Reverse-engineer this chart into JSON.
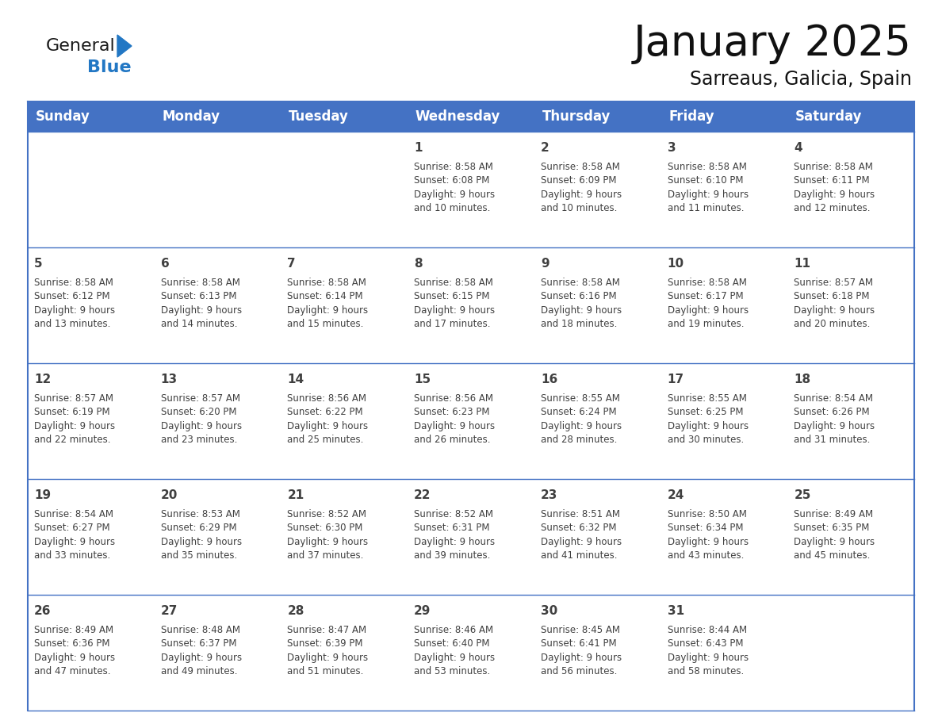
{
  "title": "January 2025",
  "subtitle": "Sarreaus, Galicia, Spain",
  "header_bg": "#4472C4",
  "header_text_color": "#FFFFFF",
  "border_color": "#4472C4",
  "text_color": "#404040",
  "days_of_week": [
    "Sunday",
    "Monday",
    "Tuesday",
    "Wednesday",
    "Thursday",
    "Friday",
    "Saturday"
  ],
  "calendar_data": [
    [
      {
        "day": "",
        "info": ""
      },
      {
        "day": "",
        "info": ""
      },
      {
        "day": "",
        "info": ""
      },
      {
        "day": "1",
        "info": "Sunrise: 8:58 AM\nSunset: 6:08 PM\nDaylight: 9 hours\nand 10 minutes."
      },
      {
        "day": "2",
        "info": "Sunrise: 8:58 AM\nSunset: 6:09 PM\nDaylight: 9 hours\nand 10 minutes."
      },
      {
        "day": "3",
        "info": "Sunrise: 8:58 AM\nSunset: 6:10 PM\nDaylight: 9 hours\nand 11 minutes."
      },
      {
        "day": "4",
        "info": "Sunrise: 8:58 AM\nSunset: 6:11 PM\nDaylight: 9 hours\nand 12 minutes."
      }
    ],
    [
      {
        "day": "5",
        "info": "Sunrise: 8:58 AM\nSunset: 6:12 PM\nDaylight: 9 hours\nand 13 minutes."
      },
      {
        "day": "6",
        "info": "Sunrise: 8:58 AM\nSunset: 6:13 PM\nDaylight: 9 hours\nand 14 minutes."
      },
      {
        "day": "7",
        "info": "Sunrise: 8:58 AM\nSunset: 6:14 PM\nDaylight: 9 hours\nand 15 minutes."
      },
      {
        "day": "8",
        "info": "Sunrise: 8:58 AM\nSunset: 6:15 PM\nDaylight: 9 hours\nand 17 minutes."
      },
      {
        "day": "9",
        "info": "Sunrise: 8:58 AM\nSunset: 6:16 PM\nDaylight: 9 hours\nand 18 minutes."
      },
      {
        "day": "10",
        "info": "Sunrise: 8:58 AM\nSunset: 6:17 PM\nDaylight: 9 hours\nand 19 minutes."
      },
      {
        "day": "11",
        "info": "Sunrise: 8:57 AM\nSunset: 6:18 PM\nDaylight: 9 hours\nand 20 minutes."
      }
    ],
    [
      {
        "day": "12",
        "info": "Sunrise: 8:57 AM\nSunset: 6:19 PM\nDaylight: 9 hours\nand 22 minutes."
      },
      {
        "day": "13",
        "info": "Sunrise: 8:57 AM\nSunset: 6:20 PM\nDaylight: 9 hours\nand 23 minutes."
      },
      {
        "day": "14",
        "info": "Sunrise: 8:56 AM\nSunset: 6:22 PM\nDaylight: 9 hours\nand 25 minutes."
      },
      {
        "day": "15",
        "info": "Sunrise: 8:56 AM\nSunset: 6:23 PM\nDaylight: 9 hours\nand 26 minutes."
      },
      {
        "day": "16",
        "info": "Sunrise: 8:55 AM\nSunset: 6:24 PM\nDaylight: 9 hours\nand 28 minutes."
      },
      {
        "day": "17",
        "info": "Sunrise: 8:55 AM\nSunset: 6:25 PM\nDaylight: 9 hours\nand 30 minutes."
      },
      {
        "day": "18",
        "info": "Sunrise: 8:54 AM\nSunset: 6:26 PM\nDaylight: 9 hours\nand 31 minutes."
      }
    ],
    [
      {
        "day": "19",
        "info": "Sunrise: 8:54 AM\nSunset: 6:27 PM\nDaylight: 9 hours\nand 33 minutes."
      },
      {
        "day": "20",
        "info": "Sunrise: 8:53 AM\nSunset: 6:29 PM\nDaylight: 9 hours\nand 35 minutes."
      },
      {
        "day": "21",
        "info": "Sunrise: 8:52 AM\nSunset: 6:30 PM\nDaylight: 9 hours\nand 37 minutes."
      },
      {
        "day": "22",
        "info": "Sunrise: 8:52 AM\nSunset: 6:31 PM\nDaylight: 9 hours\nand 39 minutes."
      },
      {
        "day": "23",
        "info": "Sunrise: 8:51 AM\nSunset: 6:32 PM\nDaylight: 9 hours\nand 41 minutes."
      },
      {
        "day": "24",
        "info": "Sunrise: 8:50 AM\nSunset: 6:34 PM\nDaylight: 9 hours\nand 43 minutes."
      },
      {
        "day": "25",
        "info": "Sunrise: 8:49 AM\nSunset: 6:35 PM\nDaylight: 9 hours\nand 45 minutes."
      }
    ],
    [
      {
        "day": "26",
        "info": "Sunrise: 8:49 AM\nSunset: 6:36 PM\nDaylight: 9 hours\nand 47 minutes."
      },
      {
        "day": "27",
        "info": "Sunrise: 8:48 AM\nSunset: 6:37 PM\nDaylight: 9 hours\nand 49 minutes."
      },
      {
        "day": "28",
        "info": "Sunrise: 8:47 AM\nSunset: 6:39 PM\nDaylight: 9 hours\nand 51 minutes."
      },
      {
        "day": "29",
        "info": "Sunrise: 8:46 AM\nSunset: 6:40 PM\nDaylight: 9 hours\nand 53 minutes."
      },
      {
        "day": "30",
        "info": "Sunrise: 8:45 AM\nSunset: 6:41 PM\nDaylight: 9 hours\nand 56 minutes."
      },
      {
        "day": "31",
        "info": "Sunrise: 8:44 AM\nSunset: 6:43 PM\nDaylight: 9 hours\nand 58 minutes."
      },
      {
        "day": "",
        "info": ""
      }
    ]
  ],
  "logo_general_color": "#1a1a1a",
  "logo_blue_color": "#2277C4",
  "logo_triangle_color": "#2277C4",
  "title_fontsize": 38,
  "subtitle_fontsize": 17,
  "header_fontsize": 12,
  "day_number_fontsize": 11,
  "cell_text_fontsize": 8.5
}
